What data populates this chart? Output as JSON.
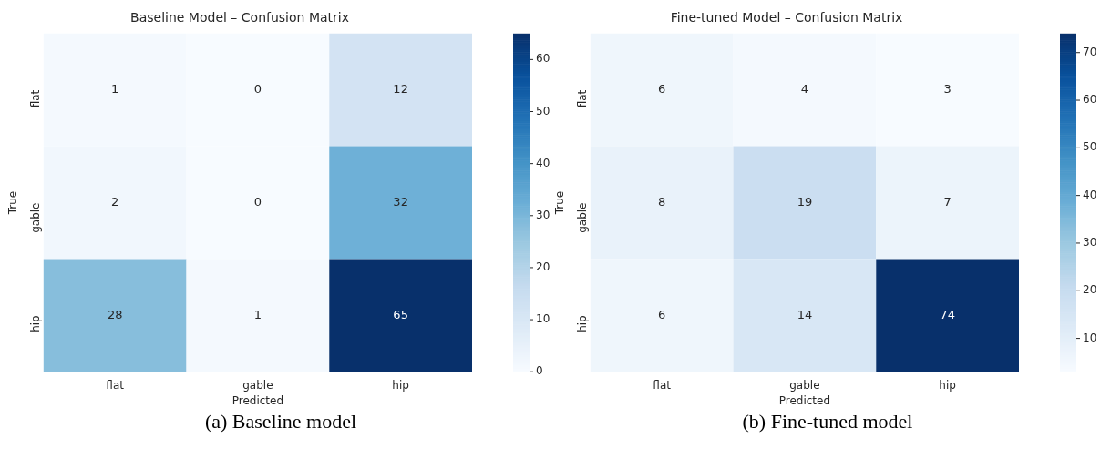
{
  "chart_data": [
    {
      "type": "heatmap",
      "title": "Baseline Model – Confusion Matrix",
      "xlabel": "Predicted",
      "ylabel": "True",
      "categories": [
        "flat",
        "gable",
        "hip"
      ],
      "y_categories": [
        "flat",
        "gable",
        "hip"
      ],
      "cells": [
        [
          1,
          0,
          12
        ],
        [
          2,
          0,
          32
        ],
        [
          28,
          1,
          65
        ]
      ],
      "clim": [
        0,
        65
      ],
      "cticks": [
        0,
        10,
        20,
        30,
        40,
        50,
        60
      ],
      "data_labels": true,
      "annotations": [
        "(a) Baseline model"
      ]
    },
    {
      "type": "heatmap",
      "title": "Fine-tuned Model – Confusion Matrix",
      "xlabel": "Predicted",
      "ylabel": "True",
      "categories": [
        "flat",
        "gable",
        "hip"
      ],
      "y_categories": [
        "flat",
        "gable",
        "hip"
      ],
      "cells": [
        [
          6,
          4,
          3
        ],
        [
          8,
          19,
          7
        ],
        [
          6,
          14,
          74
        ]
      ],
      "clim": [
        3,
        74
      ],
      "cticks": [
        10,
        20,
        30,
        40,
        50,
        60,
        70
      ],
      "data_labels": true,
      "annotations": [
        "(b) Fine-tuned model"
      ]
    }
  ]
}
